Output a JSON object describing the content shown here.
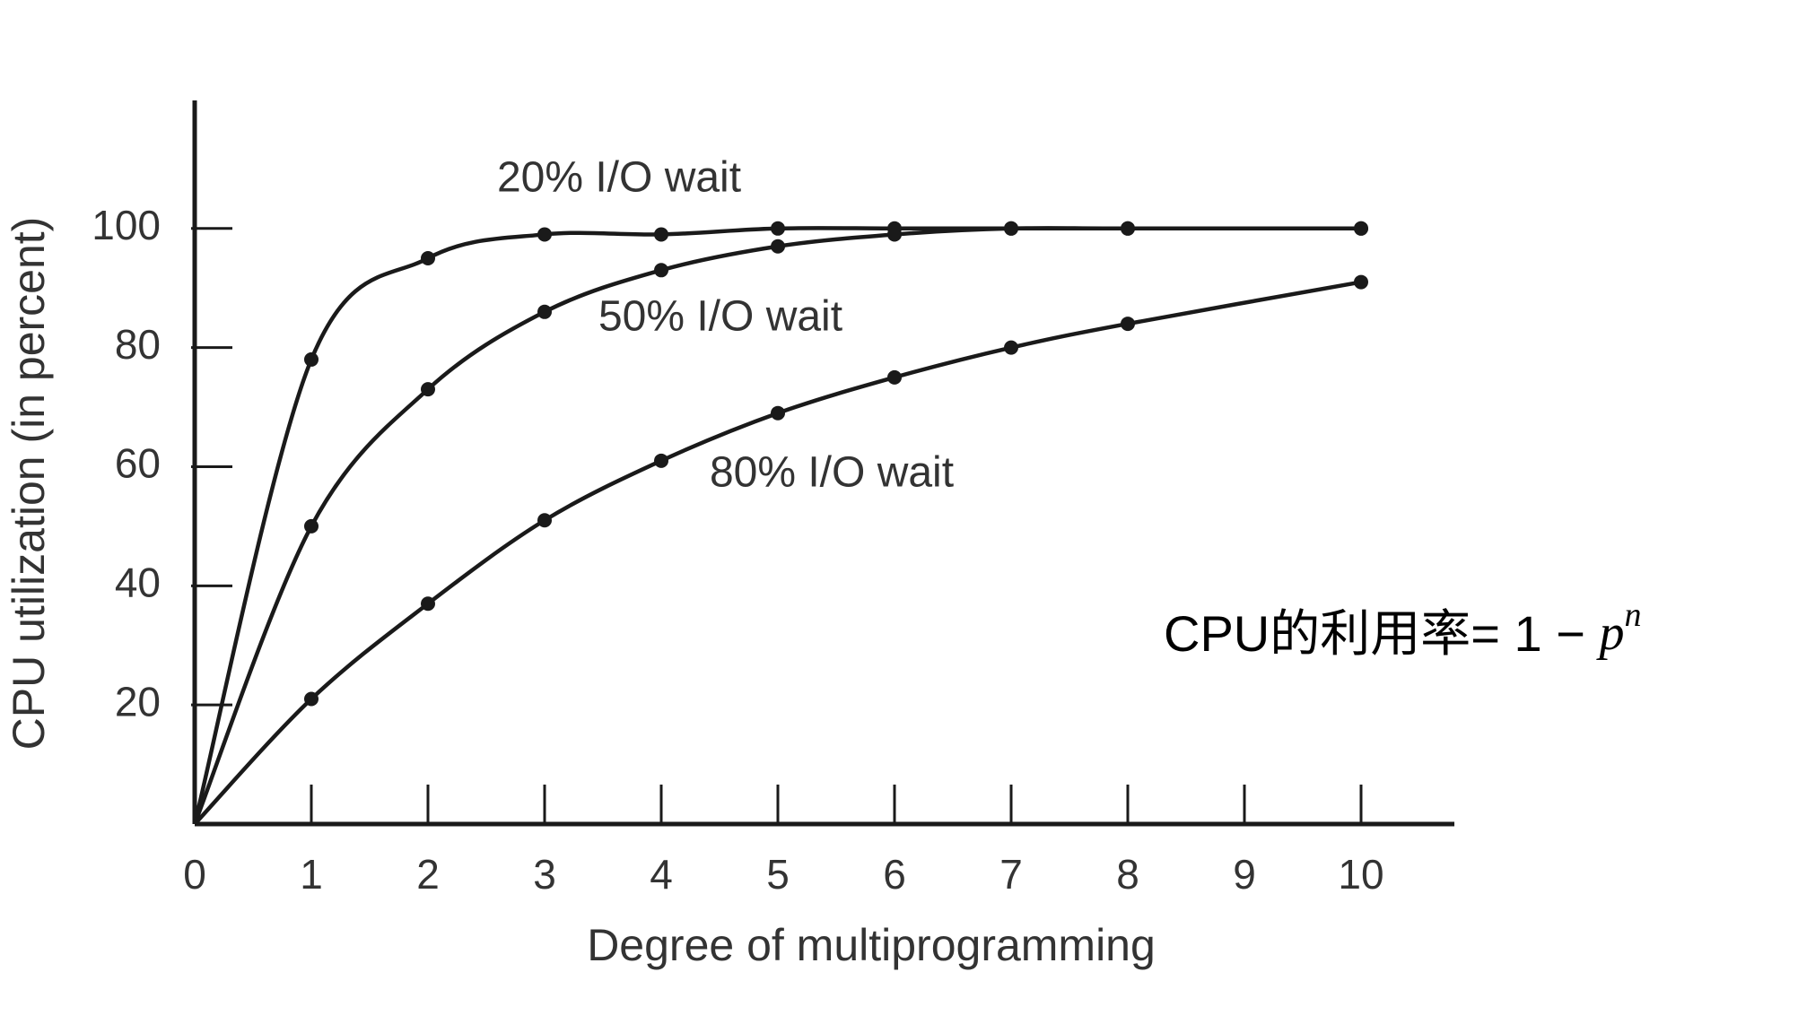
{
  "chart_data": {
    "type": "line",
    "x": [
      0,
      1,
      2,
      3,
      4,
      5,
      6,
      7,
      8,
      10
    ],
    "series": [
      {
        "name": "20% I/O wait",
        "color": "#1a1a1a",
        "values": [
          0,
          78,
          95,
          99,
          99,
          100,
          100,
          100,
          100,
          100
        ]
      },
      {
        "name": "50% I/O wait",
        "color": "#1a1a1a",
        "values": [
          0,
          50,
          73,
          86,
          93,
          97,
          99,
          100,
          100,
          100
        ]
      },
      {
        "name": "80% I/O wait",
        "color": "#1a1a1a",
        "values": [
          0,
          21,
          37,
          51,
          61,
          69,
          75,
          80,
          84,
          91
        ]
      }
    ],
    "xlabel": "Degree of multiprogramming",
    "ylabel": "CPU utilization (in percent)",
    "xlim": [
      0,
      10.8
    ],
    "ylim": [
      0,
      121.5
    ],
    "xticks": [
      0,
      1,
      2,
      3,
      4,
      5,
      6,
      7,
      8,
      9,
      10
    ],
    "yticks": [
      20,
      40,
      60,
      80,
      100
    ],
    "formula": {
      "text": "CPU的利用率= 1 − ",
      "base": "p",
      "exponent": "n"
    }
  }
}
